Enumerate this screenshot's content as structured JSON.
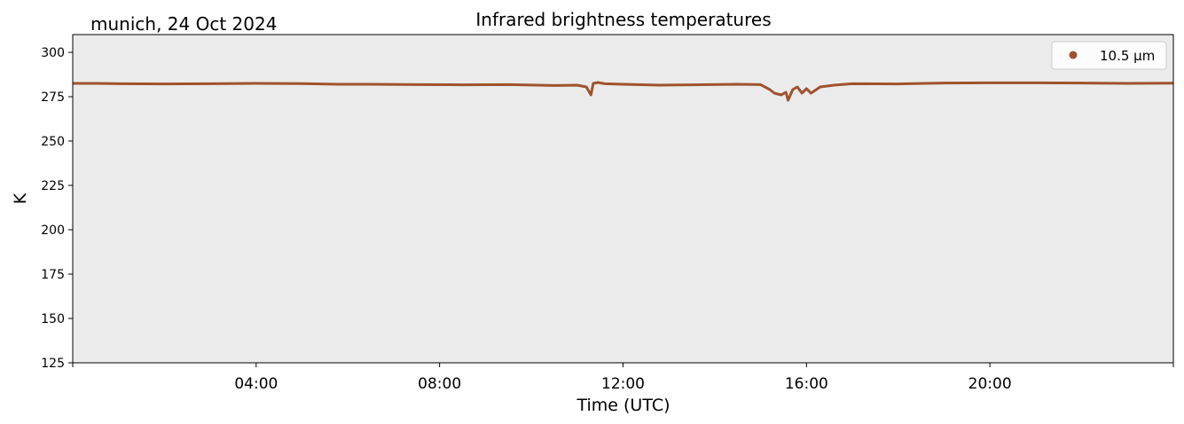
{
  "chart_data": {
    "type": "line",
    "title": "Infrared brightness temperatures",
    "subtitle": "munich, 24 Oct 2024",
    "xlabel": "Time (UTC)",
    "ylabel": "K",
    "x_unit": "hours UTC",
    "xlim": [
      0,
      24
    ],
    "ylim": [
      125,
      310
    ],
    "x_ticks": [
      0,
      4,
      8,
      12,
      16,
      20,
      24
    ],
    "x_tick_labels": [
      "",
      "04:00",
      "08:00",
      "12:00",
      "16:00",
      "20:00",
      ""
    ],
    "y_ticks": [
      125,
      150,
      175,
      200,
      225,
      250,
      275,
      300
    ],
    "y_tick_labels": [
      "125",
      "150",
      "175",
      "200",
      "225",
      "250",
      "275",
      "300"
    ],
    "grid": false,
    "background": "#ebebeb",
    "legend": {
      "position": "top-right",
      "entries": [
        "10.5 µm"
      ]
    },
    "series": [
      {
        "name": "10.5 µm",
        "color": "#a0522d",
        "x": [
          0.0,
          0.5,
          1.0,
          2.0,
          3.0,
          4.0,
          5.0,
          5.8,
          6.5,
          7.5,
          8.5,
          9.5,
          10.5,
          11.0,
          11.2,
          11.3,
          11.35,
          11.45,
          11.6,
          12.0,
          12.8,
          13.5,
          14.5,
          15.0,
          15.2,
          15.3,
          15.45,
          15.55,
          15.6,
          15.7,
          15.8,
          15.9,
          16.0,
          16.1,
          16.3,
          16.6,
          17.0,
          18.0,
          19.0,
          20.0,
          21.0,
          22.0,
          23.0,
          24.0
        ],
        "y": [
          282.5,
          282.5,
          282.3,
          282.2,
          282.3,
          282.5,
          282.4,
          282.0,
          282.0,
          281.8,
          281.7,
          281.8,
          281.3,
          281.5,
          280.5,
          276.0,
          282.5,
          283.0,
          282.3,
          282.0,
          281.5,
          281.7,
          282.0,
          281.8,
          279.0,
          277.0,
          276.0,
          277.5,
          273.0,
          279.0,
          280.5,
          277.0,
          279.5,
          277.0,
          280.5,
          281.5,
          282.3,
          282.2,
          282.7,
          282.8,
          282.8,
          282.7,
          282.5,
          282.6
        ]
      }
    ]
  }
}
